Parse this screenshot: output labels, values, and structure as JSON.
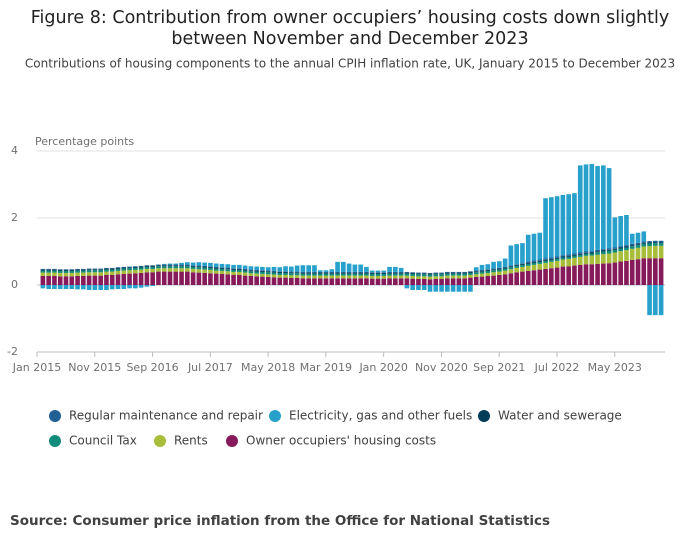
{
  "chart_data": {
    "type": "stacked_bar",
    "title": "Figure 8: Contribution from owner occupiers’ housing costs down slightly between November and December 2023",
    "subtitle": "Contributions of housing components to the annual CPIH inflation rate, UK, January 2015 to December 2023",
    "y_label": "Percentage points",
    "source": "Source: Consumer price inflation from the Office for National Statistics",
    "categories": [
      "Jan 2015",
      null,
      null,
      null,
      null,
      null,
      null,
      null,
      null,
      null,
      "Nov 2015",
      null,
      null,
      null,
      null,
      null,
      null,
      null,
      null,
      null,
      "Sep 2016",
      null,
      null,
      null,
      null,
      null,
      null,
      null,
      null,
      null,
      "Jul 2017",
      null,
      null,
      null,
      null,
      null,
      null,
      null,
      null,
      null,
      "May 2018",
      null,
      null,
      null,
      null,
      null,
      null,
      null,
      null,
      null,
      "Mar 2019",
      null,
      null,
      null,
      null,
      null,
      null,
      null,
      null,
      null,
      "Jan 2020",
      null,
      null,
      null,
      null,
      null,
      null,
      null,
      null,
      null,
      "Nov 2020",
      null,
      null,
      null,
      null,
      null,
      null,
      null,
      null,
      null,
      "Sep 2021",
      null,
      null,
      null,
      null,
      null,
      null,
      null,
      null,
      null,
      "Jul 2022",
      null,
      null,
      null,
      null,
      null,
      null,
      null,
      null,
      null,
      "May 2023",
      null,
      null,
      null,
      null,
      null,
      null,
      null
    ],
    "ylim": [
      -2,
      4
    ],
    "yticks": [
      -2,
      0,
      2,
      4
    ],
    "grid": true,
    "series": [
      {
        "name": "Regular maintenance and repair",
        "color": "#206095",
        "values": [
          0.02,
          0.02,
          0.02,
          0.02,
          0.02,
          0.02,
          0.02,
          0.02,
          0.02,
          0.02,
          0.02,
          0.02,
          0.02,
          0.02,
          0.02,
          0.02,
          0.02,
          0.02,
          0.02,
          0.02,
          0.02,
          0.02,
          0.02,
          0.02,
          0.02,
          0.02,
          0.02,
          0.02,
          0.02,
          0.02,
          0.02,
          0.02,
          0.02,
          0.02,
          0.02,
          0.02,
          0.02,
          0.02,
          0.02,
          0.02,
          0.02,
          0.02,
          0.02,
          0.02,
          0.02,
          0.02,
          0.02,
          0.02,
          0.02,
          0.02,
          0.02,
          0.02,
          0.02,
          0.02,
          0.02,
          0.02,
          0.02,
          0.02,
          0.02,
          0.02,
          0.02,
          0.02,
          0.02,
          0.02,
          0.02,
          0.02,
          0.02,
          0.02,
          0.02,
          0.02,
          0.02,
          0.02,
          0.02,
          0.02,
          0.02,
          0.02,
          0.02,
          0.02,
          0.02,
          0.02,
          0.02,
          0.02,
          0.02,
          0.02,
          0.04,
          0.04,
          0.04,
          0.04,
          0.04,
          0.04,
          0.04,
          0.04,
          0.04,
          0.04,
          0.04,
          0.04,
          0.04,
          0.04,
          0.04,
          0.04,
          0.04,
          0.04,
          0.04,
          0.04,
          0.04,
          0.04,
          0.04,
          0.04
        ]
      },
      {
        "name": "Electricity, gas and other fuels",
        "color": "#27a0cc",
        "values": [
          -0.1,
          -0.12,
          -0.12,
          -0.12,
          -0.12,
          -0.12,
          -0.13,
          -0.13,
          -0.15,
          -0.15,
          -0.15,
          -0.15,
          -0.13,
          -0.12,
          -0.12,
          -0.1,
          -0.1,
          -0.08,
          -0.05,
          -0.03,
          0.0,
          0.02,
          0.03,
          0.03,
          0.05,
          0.07,
          0.08,
          0.1,
          0.1,
          0.1,
          0.1,
          0.1,
          0.1,
          0.1,
          0.1,
          0.1,
          0.1,
          0.1,
          0.1,
          0.1,
          0.12,
          0.12,
          0.15,
          0.15,
          0.18,
          0.2,
          0.2,
          0.2,
          0.05,
          0.05,
          0.08,
          0.3,
          0.3,
          0.25,
          0.22,
          0.22,
          0.15,
          0.05,
          0.05,
          0.05,
          0.15,
          0.15,
          0.12,
          -0.1,
          -0.15,
          -0.15,
          -0.15,
          -0.2,
          -0.2,
          -0.2,
          -0.2,
          -0.2,
          -0.2,
          -0.2,
          -0.2,
          0.1,
          0.15,
          0.15,
          0.2,
          0.2,
          0.25,
          0.6,
          0.6,
          0.6,
          0.8,
          0.8,
          0.8,
          1.8,
          1.8,
          1.8,
          1.8,
          1.8,
          1.8,
          2.6,
          2.6,
          2.6,
          2.5,
          2.5,
          2.4,
          0.9,
          0.9,
          0.9,
          0.3,
          0.3,
          0.3,
          -0.9,
          -0.9,
          -0.9
        ]
      },
      {
        "name": "Water and sewerage",
        "color": "#003c57",
        "values": [
          0.03,
          0.03,
          0.03,
          0.03,
          0.03,
          0.03,
          0.03,
          0.03,
          0.03,
          0.03,
          0.03,
          0.03,
          0.03,
          0.03,
          0.03,
          0.03,
          0.03,
          0.03,
          0.03,
          0.03,
          0.03,
          0.03,
          0.03,
          0.03,
          0.03,
          0.03,
          0.03,
          0.03,
          0.03,
          0.03,
          0.03,
          0.03,
          0.03,
          0.03,
          0.03,
          0.03,
          0.03,
          0.03,
          0.03,
          0.03,
          0.03,
          0.03,
          0.03,
          0.03,
          0.03,
          0.03,
          0.03,
          0.03,
          0.03,
          0.03,
          0.03,
          0.03,
          0.03,
          0.03,
          0.03,
          0.03,
          0.03,
          0.03,
          0.03,
          0.03,
          0.03,
          0.03,
          0.03,
          0.03,
          0.03,
          0.03,
          0.03,
          0.03,
          0.03,
          0.03,
          0.03,
          0.03,
          0.03,
          0.03,
          0.03,
          0.03,
          0.03,
          0.03,
          0.03,
          0.03,
          0.03,
          0.03,
          0.03,
          0.03,
          0.03,
          0.03,
          0.03,
          0.03,
          0.03,
          0.03,
          0.03,
          0.03,
          0.03,
          0.03,
          0.03,
          0.03,
          0.03,
          0.03,
          0.03,
          0.03,
          0.03,
          0.03,
          0.03,
          0.03,
          0.03,
          0.03,
          0.03,
          0.03
        ]
      },
      {
        "name": "Council Tax",
        "color": "#118c7b",
        "values": [
          0.06,
          0.06,
          0.06,
          0.06,
          0.06,
          0.06,
          0.06,
          0.06,
          0.06,
          0.06,
          0.06,
          0.06,
          0.06,
          0.06,
          0.06,
          0.06,
          0.06,
          0.06,
          0.06,
          0.06,
          0.06,
          0.06,
          0.06,
          0.06,
          0.06,
          0.06,
          0.06,
          0.06,
          0.06,
          0.06,
          0.06,
          0.06,
          0.06,
          0.06,
          0.06,
          0.06,
          0.06,
          0.06,
          0.06,
          0.06,
          0.06,
          0.06,
          0.06,
          0.06,
          0.06,
          0.06,
          0.06,
          0.06,
          0.06,
          0.06,
          0.06,
          0.06,
          0.06,
          0.06,
          0.06,
          0.06,
          0.06,
          0.06,
          0.06,
          0.06,
          0.06,
          0.06,
          0.06,
          0.06,
          0.06,
          0.06,
          0.06,
          0.06,
          0.06,
          0.06,
          0.06,
          0.06,
          0.06,
          0.06,
          0.06,
          0.06,
          0.06,
          0.06,
          0.06,
          0.06,
          0.06,
          0.06,
          0.06,
          0.06,
          0.06,
          0.06,
          0.06,
          0.06,
          0.06,
          0.06,
          0.06,
          0.06,
          0.06,
          0.06,
          0.06,
          0.06,
          0.08,
          0.08,
          0.08,
          0.08,
          0.08,
          0.08,
          0.08,
          0.08,
          0.08,
          0.08,
          0.08,
          0.08
        ]
      },
      {
        "name": "Rents",
        "color": "#a8bd3a",
        "values": [
          0.1,
          0.1,
          0.1,
          0.1,
          0.1,
          0.1,
          0.1,
          0.1,
          0.1,
          0.1,
          0.1,
          0.1,
          0.1,
          0.1,
          0.1,
          0.1,
          0.1,
          0.1,
          0.1,
          0.1,
          0.1,
          0.1,
          0.1,
          0.1,
          0.1,
          0.1,
          0.1,
          0.1,
          0.1,
          0.1,
          0.09,
          0.09,
          0.09,
          0.09,
          0.09,
          0.09,
          0.08,
          0.08,
          0.08,
          0.08,
          0.08,
          0.08,
          0.08,
          0.08,
          0.08,
          0.08,
          0.08,
          0.08,
          0.08,
          0.08,
          0.08,
          0.08,
          0.08,
          0.08,
          0.08,
          0.08,
          0.08,
          0.08,
          0.08,
          0.08,
          0.08,
          0.08,
          0.08,
          0.08,
          0.08,
          0.08,
          0.08,
          0.08,
          0.08,
          0.08,
          0.08,
          0.08,
          0.08,
          0.08,
          0.08,
          0.08,
          0.09,
          0.09,
          0.1,
          0.1,
          0.11,
          0.12,
          0.13,
          0.14,
          0.15,
          0.16,
          0.17,
          0.18,
          0.19,
          0.2,
          0.21,
          0.22,
          0.23,
          0.24,
          0.25,
          0.26,
          0.27,
          0.28,
          0.29,
          0.3,
          0.31,
          0.32,
          0.33,
          0.34,
          0.35,
          0.36,
          0.37,
          0.37
        ]
      },
      {
        "name": "Owner occupiers' housing costs",
        "color": "#871a5b",
        "values": [
          0.27,
          0.27,
          0.27,
          0.26,
          0.26,
          0.26,
          0.27,
          0.27,
          0.28,
          0.28,
          0.28,
          0.3,
          0.3,
          0.32,
          0.33,
          0.34,
          0.35,
          0.36,
          0.38,
          0.38,
          0.4,
          0.4,
          0.4,
          0.4,
          0.4,
          0.4,
          0.38,
          0.37,
          0.36,
          0.35,
          0.34,
          0.33,
          0.32,
          0.3,
          0.3,
          0.28,
          0.27,
          0.26,
          0.25,
          0.24,
          0.23,
          0.22,
          0.22,
          0.21,
          0.21,
          0.2,
          0.2,
          0.2,
          0.2,
          0.2,
          0.2,
          0.2,
          0.2,
          0.2,
          0.2,
          0.2,
          0.2,
          0.19,
          0.19,
          0.19,
          0.2,
          0.2,
          0.2,
          0.2,
          0.19,
          0.18,
          0.18,
          0.17,
          0.18,
          0.18,
          0.2,
          0.2,
          0.2,
          0.2,
          0.22,
          0.24,
          0.25,
          0.27,
          0.28,
          0.3,
          0.32,
          0.35,
          0.38,
          0.4,
          0.42,
          0.44,
          0.46,
          0.48,
          0.5,
          0.52,
          0.55,
          0.56,
          0.58,
          0.6,
          0.62,
          0.62,
          0.63,
          0.64,
          0.65,
          0.67,
          0.7,
          0.72,
          0.75,
          0.77,
          0.8,
          0.8,
          0.8,
          0.8
        ]
      }
    ]
  }
}
